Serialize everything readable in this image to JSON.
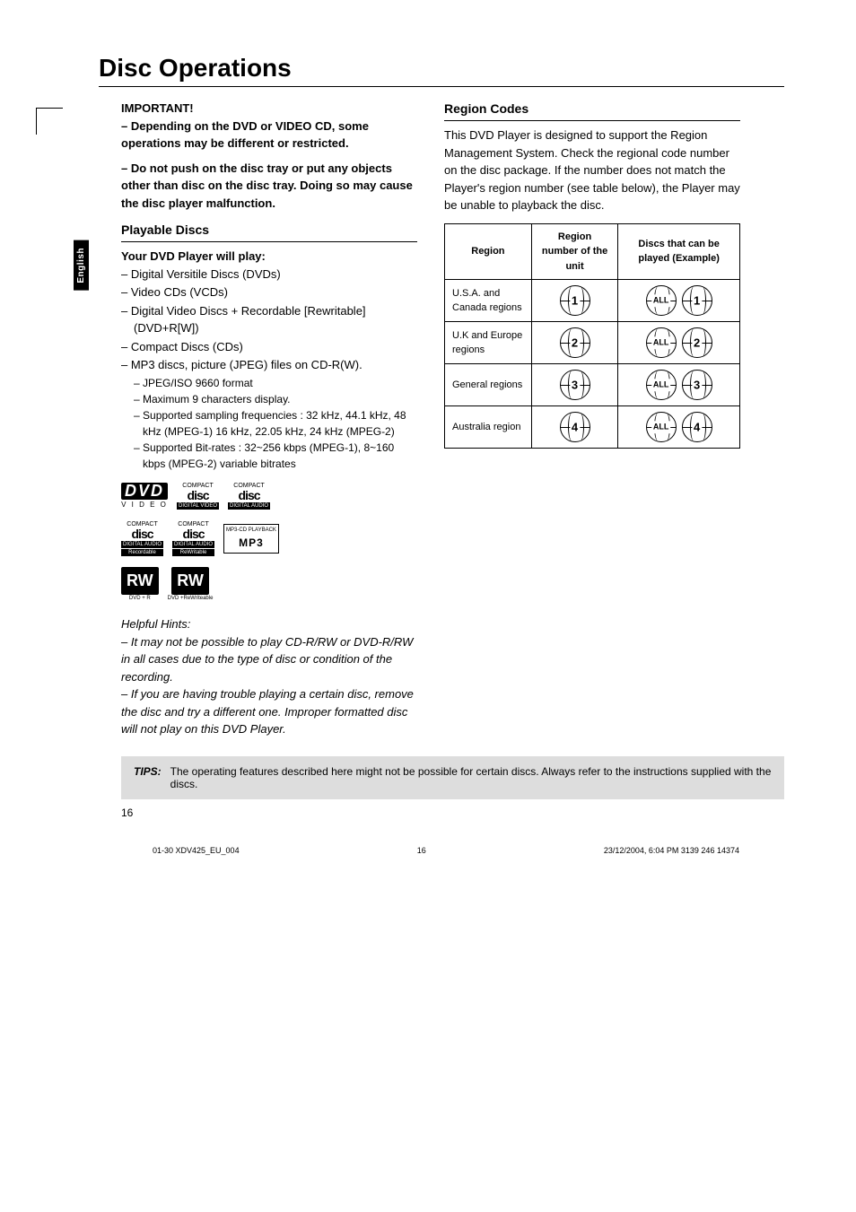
{
  "side_tab": "English",
  "title": "Disc Operations",
  "important": {
    "heading": "IMPORTANT!",
    "p1": "–  Depending on the DVD or VIDEO CD, some operations may be different or restricted.",
    "p2": "–  Do not push on the disc tray or put any objects other than disc on the disc tray.  Doing so may cause the disc player malfunction."
  },
  "playable": {
    "heading": "Playable Discs",
    "sub": "Your DVD Player will play:",
    "items": [
      "Digital Versitile Discs (DVDs)",
      "Video CDs (VCDs)",
      "Digital Video Discs + Recordable [Rewritable] (DVD+R[W])",
      "Compact Discs (CDs)",
      "MP3 discs, picture (JPEG) files on CD-R(W)."
    ],
    "sub_items": [
      "JPEG/ISO 9660 format",
      "Maximum 9 characters display.",
      "Supported sampling frequencies : 32 kHz, 44.1 kHz, 48 kHz (MPEG-1) 16 kHz, 22.05 kHz, 24 kHz (MPEG-2)",
      "Supported Bit-rates : 32~256 kbps (MPEG-1), 8~160 kbps (MPEG-2) variable bitrates"
    ]
  },
  "logos": {
    "dvd": "DVD",
    "dvd_sub": "V I D E O",
    "disc_digital_video": {
      "top": "COMPACT",
      "mid": "disc",
      "bot": "DIGITAL VIDEO"
    },
    "disc_digital_audio": {
      "top": "COMPACT",
      "mid": "disc",
      "bot": "DIGITAL AUDIO"
    },
    "disc_recordable": {
      "top": "COMPACT",
      "mid": "disc",
      "bot": "DIGITAL AUDIO",
      "bot2": "Recordable"
    },
    "disc_rewritable": {
      "top": "COMPACT",
      "mid": "disc",
      "bot": "DIGITAL AUDIO",
      "bot2": "ReWritable"
    },
    "mp3": {
      "top": "MP3-CD PLAYBACK",
      "mid": "MP3"
    },
    "rw": "RW",
    "rw_r": "DVD + R",
    "rw_rw": "DVD +ReWriteable"
  },
  "hints": {
    "heading": "Helpful Hints:",
    "h1": "–    It may not be possible to play CD-R/RW or DVD-R/RW in all cases due to the type of disc or condition of the recording.",
    "h2": "–    If you are having trouble playing a certain disc, remove the disc and try a different one.  Improper formatted disc will not play on this DVD Player."
  },
  "region": {
    "heading": "Region Codes",
    "body": "This DVD Player is designed to support the Region Management System. Check the regional code number on the disc package. If the number does not match the Player's region number (see table below), the Player may be unable to playback the disc.",
    "table": {
      "h1": "Region",
      "h2": "Region number of the unit",
      "h3": "Discs that can be played (Example)",
      "rows": [
        {
          "region": "U.S.A. and Canada regions",
          "num": "1",
          "ex_all": "ALL",
          "ex_n": "1"
        },
        {
          "region": "U.K and Europe regions",
          "num": "2",
          "ex_all": "ALL",
          "ex_n": "2"
        },
        {
          "region": "General regions",
          "num": "3",
          "ex_all": "ALL",
          "ex_n": "3"
        },
        {
          "region": "Australia region",
          "num": "4",
          "ex_all": "ALL",
          "ex_n": "4"
        }
      ]
    }
  },
  "tips": {
    "label": "TIPS:",
    "text": "The operating features described here might not be possible for certain discs.  Always refer to the instructions supplied with the discs."
  },
  "page_num": "16",
  "footer": {
    "left": "01-30 XDV425_EU_004",
    "mid": "16",
    "right": "23/12/2004, 6:04 PM 3139 246 14374"
  }
}
